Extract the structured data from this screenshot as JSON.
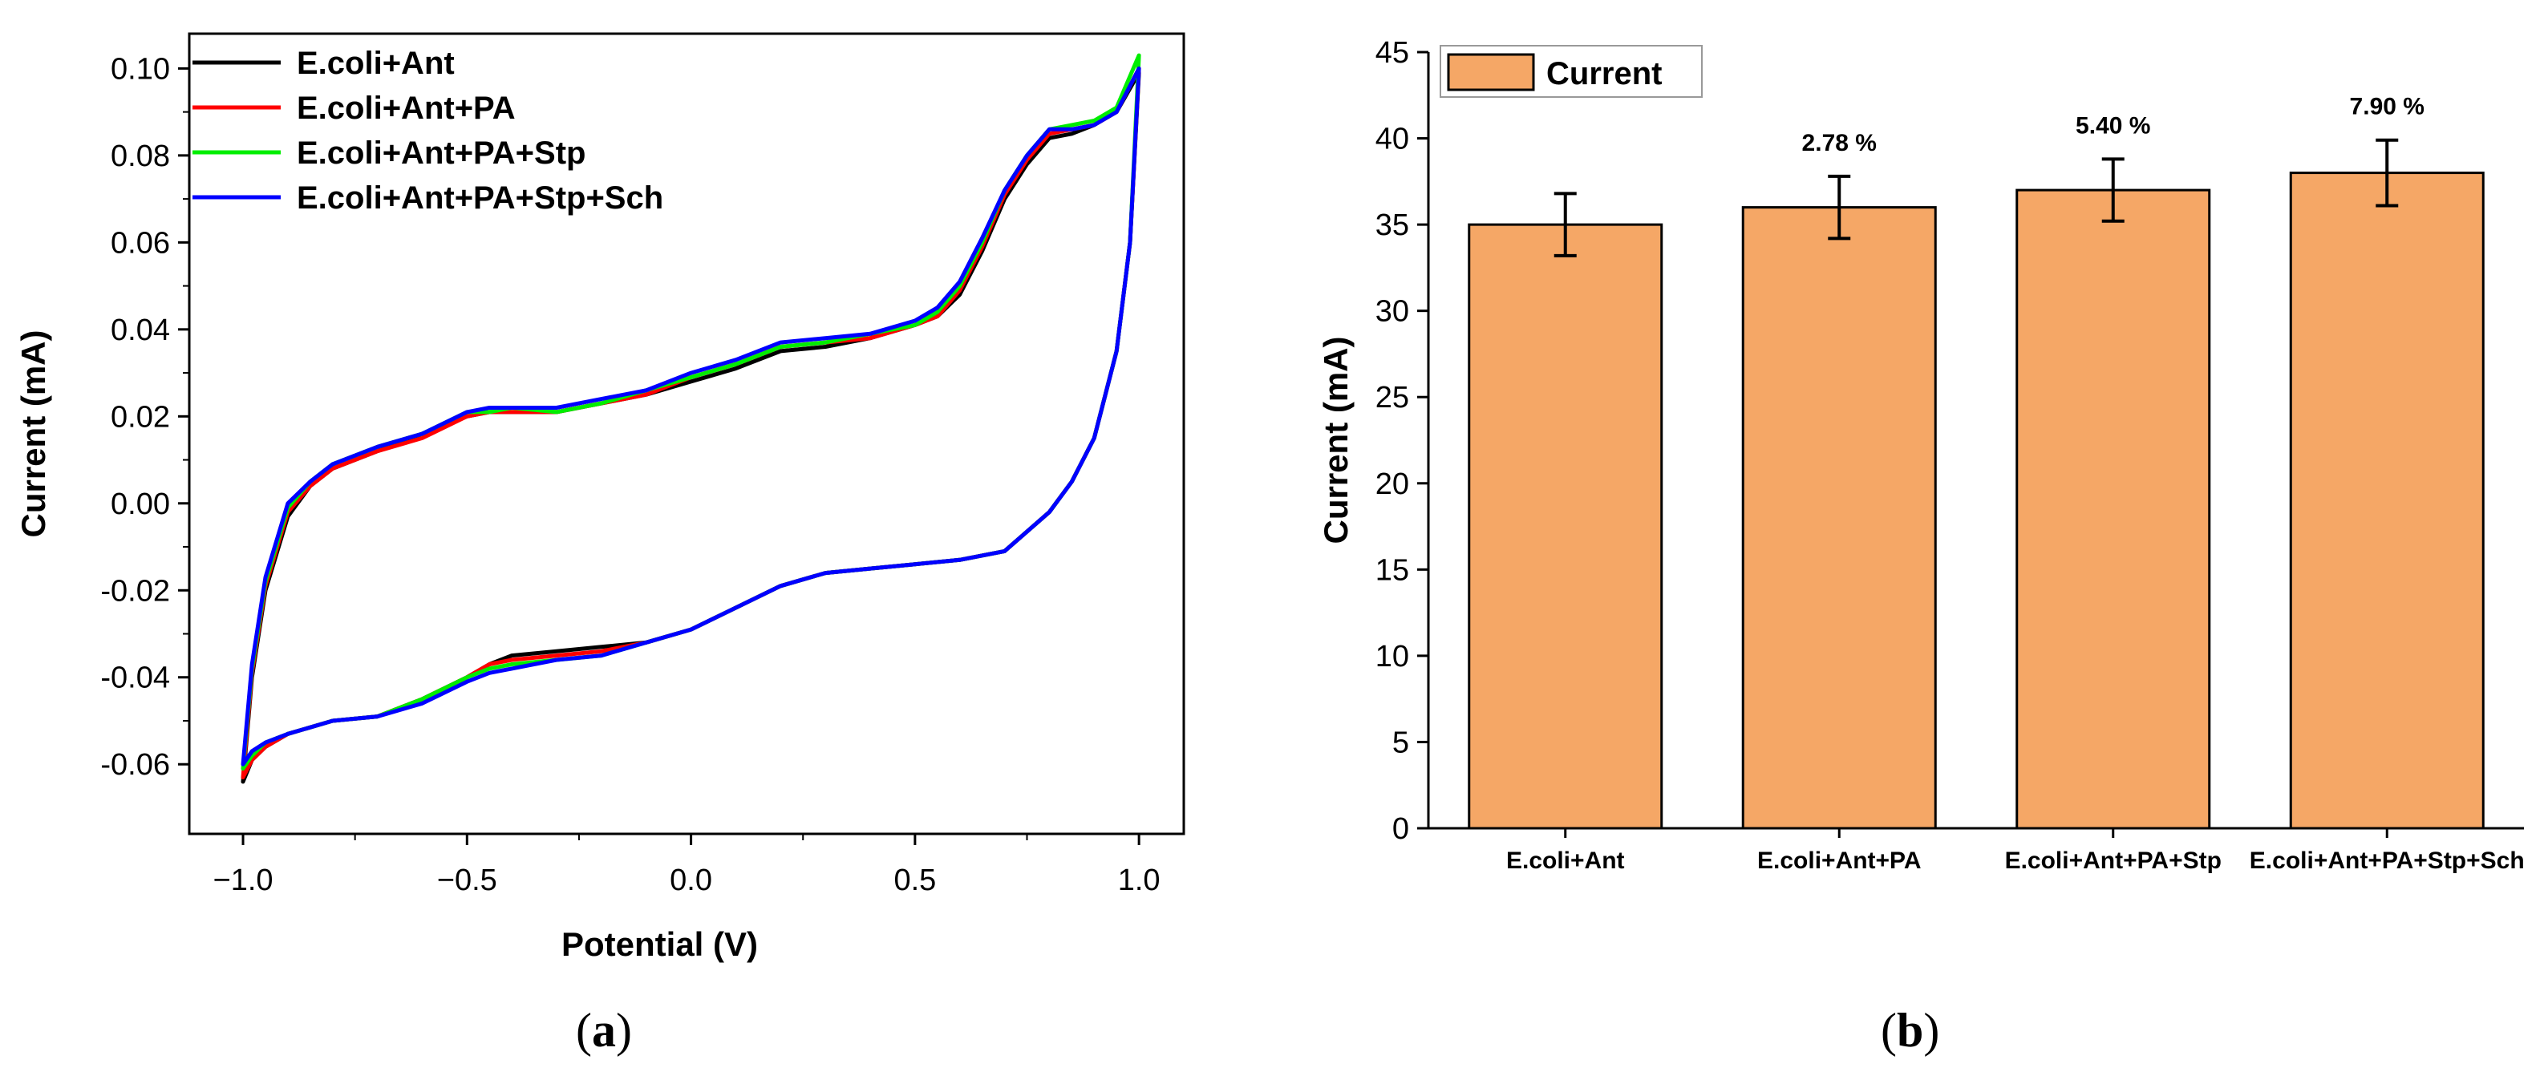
{
  "panel_a": {
    "caption": "(a)",
    "caption_letter": "a",
    "xlabel": "Potential (V)",
    "ylabel": "Current (mA)",
    "xticks": [
      "-1.0",
      "-0.5",
      "0.0",
      "0.5",
      "1.0"
    ],
    "yticks": [
      "-0.06",
      "-0.04",
      "-0.02",
      "0.00",
      "0.02",
      "0.04",
      "0.06",
      "0.08",
      "0.10"
    ],
    "legend": [
      "E.coli+Ant",
      "E.coli+Ant+PA",
      "E.coli+Ant+PA+Stp",
      "E.coli+Ant+PA+Stp+Sch"
    ],
    "colors": [
      "#000000",
      "#ff0000",
      "#00ee00",
      "#0000ff"
    ]
  },
  "panel_b": {
    "caption": "(b)",
    "caption_letter": "b",
    "ylabel": "Current (mA)",
    "legend_label": "Current",
    "bar_color": "#f5a766",
    "yticks": [
      "0",
      "5",
      "10",
      "15",
      "20",
      "25",
      "30",
      "35",
      "40",
      "45"
    ],
    "categories": [
      "E.coli+Ant",
      "E.coli+Ant+PA",
      "E.coli+Ant+PA+Stp",
      "E.coli+Ant+PA+Stp+Sch"
    ],
    "percent_labels": [
      "",
      "2.78 %",
      "5.40 %",
      "7.90 %"
    ]
  },
  "chart_data": [
    {
      "type": "line",
      "xlim": [
        -1.12,
        1.1
      ],
      "ylim": [
        -0.076,
        0.108
      ],
      "grid": false,
      "legend_position": "top-left",
      "forward_x": [
        -1.0,
        -0.98,
        -0.95,
        -0.9,
        -0.85,
        -0.8,
        -0.7,
        -0.6,
        -0.5,
        -0.45,
        -0.4,
        -0.3,
        -0.2,
        -0.1,
        0.0,
        0.1,
        0.2,
        0.3,
        0.4,
        0.5,
        0.55,
        0.6,
        0.65,
        0.7,
        0.75,
        0.8,
        0.85,
        0.9,
        0.95,
        1.0
      ],
      "reverse_x": [
        1.0,
        0.98,
        0.95,
        0.9,
        0.85,
        0.8,
        0.7,
        0.6,
        0.5,
        0.4,
        0.3,
        0.2,
        0.1,
        0.0,
        -0.1,
        -0.2,
        -0.3,
        -0.4,
        -0.45,
        -0.5,
        -0.6,
        -0.7,
        -0.8,
        -0.9,
        -0.95,
        -0.98,
        -1.0
      ],
      "series": [
        {
          "name": "E.coli+Ant",
          "forward_y": [
            -0.064,
            -0.04,
            -0.02,
            -0.003,
            0.004,
            0.008,
            0.012,
            0.016,
            0.02,
            0.021,
            0.021,
            0.021,
            0.023,
            0.025,
            0.028,
            0.031,
            0.035,
            0.036,
            0.038,
            0.041,
            0.043,
            0.048,
            0.058,
            0.07,
            0.078,
            0.084,
            0.085,
            0.087,
            0.09,
            0.099
          ],
          "reverse_y": [
            0.099,
            0.06,
            0.035,
            0.015,
            0.005,
            -0.002,
            -0.011,
            -0.013,
            -0.014,
            -0.015,
            -0.016,
            -0.019,
            -0.024,
            -0.029,
            -0.032,
            -0.033,
            -0.034,
            -0.035,
            -0.037,
            -0.04,
            -0.045,
            -0.049,
            -0.05,
            -0.053,
            -0.056,
            -0.059,
            -0.064
          ]
        },
        {
          "name": "E.coli+Ant+PA",
          "forward_y": [
            -0.063,
            -0.039,
            -0.019,
            -0.002,
            0.004,
            0.008,
            0.012,
            0.015,
            0.02,
            0.021,
            0.021,
            0.021,
            0.023,
            0.025,
            0.029,
            0.032,
            0.036,
            0.037,
            0.038,
            0.041,
            0.043,
            0.049,
            0.059,
            0.071,
            0.079,
            0.085,
            0.086,
            0.087,
            0.09,
            0.1
          ],
          "reverse_y": [
            0.1,
            0.06,
            0.035,
            0.015,
            0.005,
            -0.002,
            -0.011,
            -0.013,
            -0.014,
            -0.015,
            -0.016,
            -0.019,
            -0.024,
            -0.029,
            -0.032,
            -0.034,
            -0.035,
            -0.036,
            -0.037,
            -0.04,
            -0.045,
            -0.049,
            -0.05,
            -0.053,
            -0.056,
            -0.059,
            -0.063
          ]
        },
        {
          "name": "E.coli+Ant+PA+Stp",
          "forward_y": [
            -0.061,
            -0.038,
            -0.018,
            -0.001,
            0.005,
            0.009,
            0.013,
            0.016,
            0.021,
            0.021,
            0.022,
            0.021,
            0.023,
            0.026,
            0.029,
            0.032,
            0.036,
            0.037,
            0.039,
            0.041,
            0.044,
            0.05,
            0.06,
            0.072,
            0.08,
            0.086,
            0.087,
            0.088,
            0.091,
            0.103
          ],
          "reverse_y": [
            0.103,
            0.06,
            0.035,
            0.015,
            0.005,
            -0.002,
            -0.011,
            -0.013,
            -0.014,
            -0.015,
            -0.016,
            -0.019,
            -0.024,
            -0.029,
            -0.032,
            -0.035,
            -0.036,
            -0.037,
            -0.038,
            -0.04,
            -0.045,
            -0.049,
            -0.05,
            -0.053,
            -0.055,
            -0.058,
            -0.061
          ]
        },
        {
          "name": "E.coli+Ant+PA+Stp+Sch",
          "forward_y": [
            -0.06,
            -0.037,
            -0.017,
            0.0,
            0.005,
            0.009,
            0.013,
            0.016,
            0.021,
            0.022,
            0.022,
            0.022,
            0.024,
            0.026,
            0.03,
            0.033,
            0.037,
            0.038,
            0.039,
            0.042,
            0.045,
            0.051,
            0.061,
            0.072,
            0.08,
            0.086,
            0.086,
            0.087,
            0.09,
            0.1
          ],
          "reverse_y": [
            0.1,
            0.06,
            0.035,
            0.015,
            0.005,
            -0.002,
            -0.011,
            -0.013,
            -0.014,
            -0.015,
            -0.016,
            -0.019,
            -0.024,
            -0.029,
            -0.032,
            -0.035,
            -0.036,
            -0.038,
            -0.039,
            -0.041,
            -0.046,
            -0.049,
            -0.05,
            -0.053,
            -0.055,
            -0.057,
            -0.06
          ]
        }
      ]
    },
    {
      "type": "bar",
      "ylim": [
        0,
        45
      ],
      "grid": false,
      "legend_position": "top-left",
      "categories": [
        "E.coli+Ant",
        "E.coli+Ant+PA",
        "E.coli+Ant+PA+Stp",
        "E.coli+Ant+PA+Stp+Sch"
      ],
      "series": [
        {
          "name": "Current",
          "values": [
            35.0,
            36.0,
            37.0,
            38.0
          ],
          "errors": [
            1.8,
            1.8,
            1.8,
            1.9
          ]
        }
      ]
    }
  ]
}
